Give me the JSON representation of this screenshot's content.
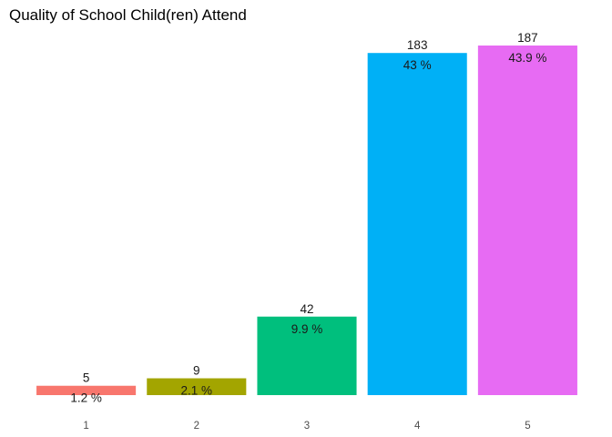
{
  "chart_data": {
    "type": "bar",
    "title": "Quality of School Child(ren) Attend",
    "xlabel": "",
    "ylabel": "",
    "categories": [
      "1",
      "2",
      "3",
      "4",
      "5"
    ],
    "values": [
      5,
      9,
      42,
      183,
      187
    ],
    "percent_labels": [
      "1.2 %",
      "2.1 %",
      "9.9 %",
      "43 %",
      "43.9 %"
    ],
    "colors": [
      "#F8766D",
      "#A3A500",
      "#00BF7D",
      "#00B0F6",
      "#E76BF3"
    ],
    "ylim": [
      0,
      187
    ],
    "grid": false,
    "legend": "none"
  }
}
